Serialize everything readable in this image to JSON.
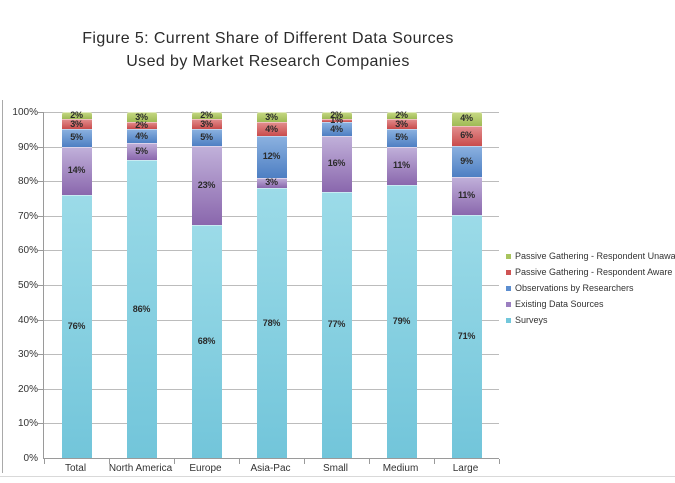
{
  "figure": {
    "title_lines": [
      "Figure 5: Current Share of Different Data Sources",
      "Used by Market Research Companies"
    ]
  },
  "chart_data": {
    "type": "bar",
    "stacked": true,
    "title": "Figure 5: Current Share of Different Data Sources Used by Market Research Companies",
    "categories": [
      "Total",
      "North America",
      "Europe",
      "Asia-Pac",
      "Small",
      "Medium",
      "Large"
    ],
    "series": [
      {
        "name": "Surveys",
        "color": "#72c7db",
        "color_top": "#9cdbe8",
        "color_bottom": "#72c5da",
        "values": [
          76,
          86,
          68,
          78,
          77,
          79,
          71
        ]
      },
      {
        "name": "Existing Data Sources",
        "color": "#9b7fc0",
        "color_top": "#c1b1da",
        "color_bottom": "#8a67ad",
        "values": [
          14,
          5,
          23,
          3,
          16,
          11,
          11
        ]
      },
      {
        "name": "Observations by Researchers",
        "color": "#5c8ed0",
        "color_top": "#8cb2e0",
        "color_bottom": "#4e7fc3",
        "values": [
          5,
          4,
          5,
          12,
          4,
          5,
          9
        ]
      },
      {
        "name": "Passive Gathering - Respondent Aware",
        "color": "#cf5454",
        "color_top": "#e39090",
        "color_bottom": "#c94c4c",
        "values": [
          3,
          2,
          3,
          4,
          1,
          3,
          6
        ]
      },
      {
        "name": "Passive Gathering - Respondent Unaware",
        "color": "#a8c45e",
        "color_top": "#c8da85",
        "color_bottom": "#9eba55",
        "values": [
          2,
          3,
          2,
          3,
          2,
          2,
          4
        ]
      }
    ],
    "y_ticks": [
      "0%",
      "10%",
      "20%",
      "30%",
      "40%",
      "50%",
      "60%",
      "70%",
      "80%",
      "90%",
      "100%"
    ],
    "ylim": [
      0,
      100
    ],
    "grid": true,
    "legend_position": "right",
    "legend_top_to_bottom": [
      "Passive Gathering - Respondent Unaware",
      "Passive Gathering - Respondent Aware",
      "Observations by Researchers",
      "Existing Data Sources",
      "Surveys"
    ],
    "bar_label_format": "percent"
  }
}
